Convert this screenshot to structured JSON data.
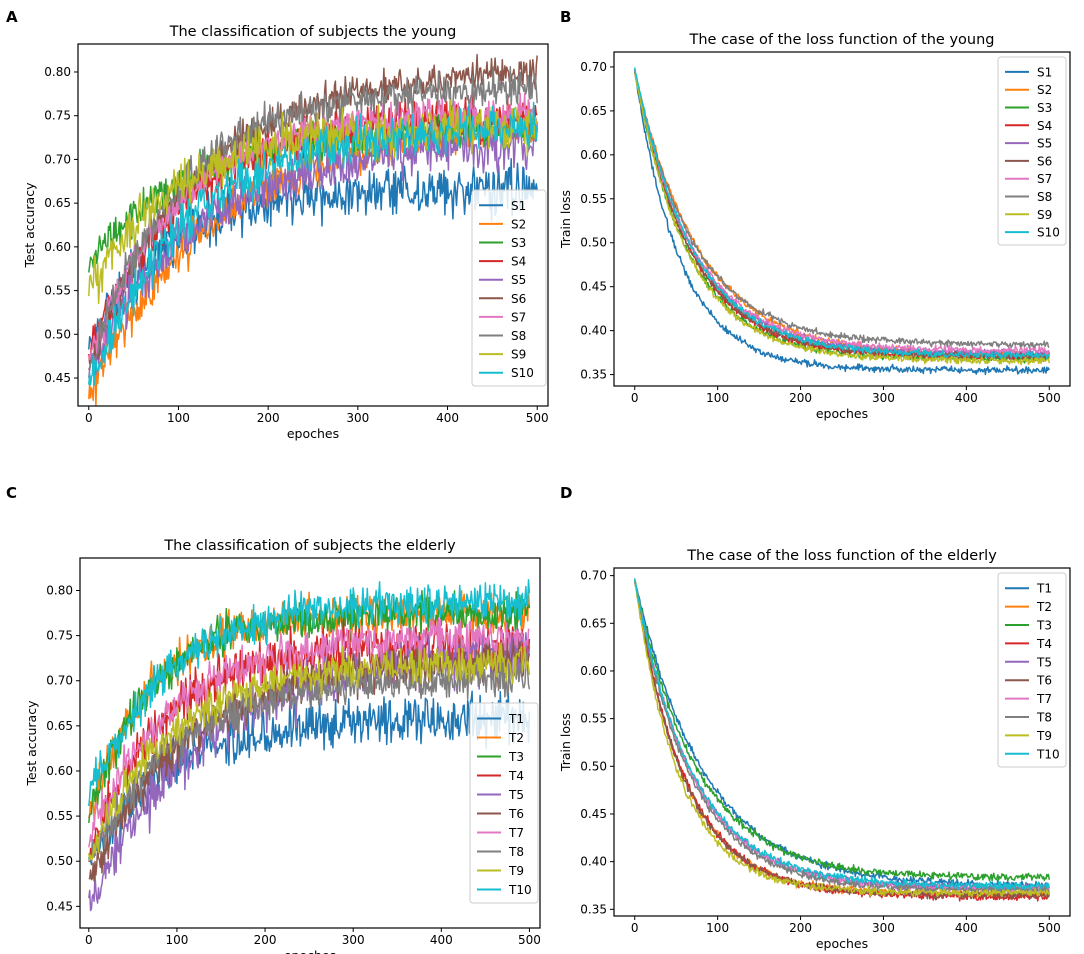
{
  "panel_letters": [
    "A",
    "B",
    "C",
    "D"
  ],
  "chart_data": [
    {
      "type": "line",
      "panel": "A",
      "title": "The classification of subjects the young",
      "xlabel": "epoches",
      "ylabel": "Test accuracy",
      "xlim": [
        -12,
        512
      ],
      "ylim": [
        0.418,
        0.832
      ],
      "xticks": [
        0,
        100,
        200,
        300,
        400,
        500
      ],
      "xtick_labels": [
        "0",
        "100",
        "200",
        "300",
        "400",
        "500"
      ],
      "yticks": [
        0.45,
        0.5,
        0.55,
        0.6,
        0.65,
        0.7,
        0.75,
        0.8
      ],
      "ytick_labels": [
        "0.45",
        "0.50",
        "0.55",
        "0.60",
        "0.65",
        "0.70",
        "0.75",
        "0.80"
      ],
      "legend_position": "lower-right",
      "series": [
        {
          "name": "S1",
          "color": "#1f77b4",
          "start": 0.48,
          "end": 0.665,
          "tau": 80,
          "noise": 0.022,
          "seed": 11
        },
        {
          "name": "S2",
          "color": "#ff7f0e",
          "start": 0.43,
          "end": 0.745,
          "tau": 140,
          "noise": 0.018,
          "seed": 12
        },
        {
          "name": "S3",
          "color": "#2ca02c",
          "start": 0.58,
          "end": 0.735,
          "tau": 110,
          "noise": 0.016,
          "seed": 13
        },
        {
          "name": "S4",
          "color": "#d62728",
          "start": 0.48,
          "end": 0.755,
          "tau": 110,
          "noise": 0.018,
          "seed": 14
        },
        {
          "name": "S5",
          "color": "#9467bd",
          "start": 0.46,
          "end": 0.72,
          "tau": 120,
          "noise": 0.02,
          "seed": 15
        },
        {
          "name": "S6",
          "color": "#8c564b",
          "start": 0.46,
          "end": 0.805,
          "tau": 120,
          "noise": 0.014,
          "seed": 16
        },
        {
          "name": "S7",
          "color": "#e377c2",
          "start": 0.47,
          "end": 0.755,
          "tau": 100,
          "noise": 0.016,
          "seed": 17
        },
        {
          "name": "S8",
          "color": "#7f7f7f",
          "start": 0.46,
          "end": 0.785,
          "tau": 100,
          "noise": 0.015,
          "seed": 18
        },
        {
          "name": "S9",
          "color": "#bcbd22",
          "start": 0.55,
          "end": 0.74,
          "tau": 100,
          "noise": 0.02,
          "seed": 19
        },
        {
          "name": "S10",
          "color": "#17becf",
          "start": 0.44,
          "end": 0.74,
          "tau": 110,
          "noise": 0.018,
          "seed": 20
        }
      ]
    },
    {
      "type": "line",
      "panel": "B",
      "title": "The case of the loss function of the young",
      "xlabel": "epoches",
      "ylabel": "Train loss",
      "xlim": [
        -25,
        525
      ],
      "ylim": [
        0.337,
        0.717
      ],
      "xticks": [
        0,
        100,
        200,
        300,
        400,
        500
      ],
      "xtick_labels": [
        "0",
        "100",
        "200",
        "300",
        "400",
        "500"
      ],
      "yticks": [
        0.35,
        0.4,
        0.45,
        0.5,
        0.55,
        0.6,
        0.65,
        0.7
      ],
      "ytick_labels": [
        "0.35",
        "0.40",
        "0.45",
        "0.50",
        "0.55",
        "0.60",
        "0.65",
        "0.70"
      ],
      "legend_position": "top-right",
      "series": [
        {
          "name": "S1",
          "color": "#1f77b4",
          "start": 0.695,
          "end": 0.355,
          "tau": 55,
          "noise": 0.003,
          "seed": 21
        },
        {
          "name": "S2",
          "color": "#ff7f0e",
          "start": 0.695,
          "end": 0.372,
          "tau": 78,
          "noise": 0.003,
          "seed": 22
        },
        {
          "name": "S3",
          "color": "#2ca02c",
          "start": 0.695,
          "end": 0.368,
          "tau": 65,
          "noise": 0.003,
          "seed": 23
        },
        {
          "name": "S4",
          "color": "#d62728",
          "start": 0.695,
          "end": 0.37,
          "tau": 68,
          "noise": 0.003,
          "seed": 24
        },
        {
          "name": "S5",
          "color": "#9467bd",
          "start": 0.695,
          "end": 0.374,
          "tau": 70,
          "noise": 0.003,
          "seed": 25
        },
        {
          "name": "S6",
          "color": "#8c564b",
          "start": 0.695,
          "end": 0.371,
          "tau": 68,
          "noise": 0.003,
          "seed": 26
        },
        {
          "name": "S7",
          "color": "#e377c2",
          "start": 0.695,
          "end": 0.377,
          "tau": 70,
          "noise": 0.003,
          "seed": 27
        },
        {
          "name": "S8",
          "color": "#7f7f7f",
          "start": 0.695,
          "end": 0.384,
          "tau": 72,
          "noise": 0.003,
          "seed": 28
        },
        {
          "name": "S9",
          "color": "#bcbd22",
          "start": 0.695,
          "end": 0.366,
          "tau": 65,
          "noise": 0.003,
          "seed": 29
        },
        {
          "name": "S10",
          "color": "#17becf",
          "start": 0.7,
          "end": 0.372,
          "tau": 70,
          "noise": 0.003,
          "seed": 30
        }
      ]
    },
    {
      "type": "line",
      "panel": "C",
      "title": "The classification of subjects the elderly",
      "xlabel": "epoches",
      "ylabel": "Test accuracy",
      "xlim": [
        -10,
        512
      ],
      "ylim": [
        0.426,
        0.836
      ],
      "xticks": [
        0,
        100,
        200,
        300,
        400,
        500
      ],
      "xtick_labels": [
        "0",
        "100",
        "200",
        "300",
        "400",
        "500"
      ],
      "yticks": [
        0.45,
        0.5,
        0.55,
        0.6,
        0.65,
        0.7,
        0.75,
        0.8
      ],
      "ytick_labels": [
        "0.45",
        "0.50",
        "0.55",
        "0.60",
        "0.65",
        "0.70",
        "0.75",
        "0.80"
      ],
      "legend_position": "lower-right",
      "series": [
        {
          "name": "T1",
          "color": "#1f77b4",
          "start": 0.5,
          "end": 0.66,
          "tau": 90,
          "noise": 0.02,
          "seed": 31
        },
        {
          "name": "T2",
          "color": "#ff7f0e",
          "start": 0.55,
          "end": 0.775,
          "tau": 70,
          "noise": 0.016,
          "seed": 32
        },
        {
          "name": "T3",
          "color": "#2ca02c",
          "start": 0.55,
          "end": 0.775,
          "tau": 70,
          "noise": 0.016,
          "seed": 33
        },
        {
          "name": "T4",
          "color": "#d62728",
          "start": 0.5,
          "end": 0.74,
          "tau": 80,
          "noise": 0.018,
          "seed": 34
        },
        {
          "name": "T5",
          "color": "#9467bd",
          "start": 0.45,
          "end": 0.735,
          "tau": 130,
          "noise": 0.022,
          "seed": 35
        },
        {
          "name": "T6",
          "color": "#8c564b",
          "start": 0.48,
          "end": 0.725,
          "tau": 110,
          "noise": 0.018,
          "seed": 36
        },
        {
          "name": "T7",
          "color": "#e377c2",
          "start": 0.52,
          "end": 0.75,
          "tau": 90,
          "noise": 0.016,
          "seed": 37
        },
        {
          "name": "T8",
          "color": "#7f7f7f",
          "start": 0.5,
          "end": 0.705,
          "tau": 100,
          "noise": 0.015,
          "seed": 38
        },
        {
          "name": "T9",
          "color": "#bcbd22",
          "start": 0.5,
          "end": 0.72,
          "tau": 90,
          "noise": 0.015,
          "seed": 39
        },
        {
          "name": "T10",
          "color": "#17becf",
          "start": 0.57,
          "end": 0.79,
          "tau": 90,
          "noise": 0.016,
          "seed": 40
        }
      ]
    },
    {
      "type": "line",
      "panel": "D",
      "title": "The case of the loss function of the elderly",
      "xlabel": "epoches",
      "ylabel": "Train loss",
      "xlim": [
        -25,
        525
      ],
      "ylim": [
        0.343,
        0.708
      ],
      "xticks": [
        0,
        100,
        200,
        300,
        400,
        500
      ],
      "xtick_labels": [
        "0",
        "100",
        "200",
        "300",
        "400",
        "500"
      ],
      "yticks": [
        0.35,
        0.4,
        0.45,
        0.5,
        0.55,
        0.6,
        0.65,
        0.7
      ],
      "ytick_labels": [
        "0.35",
        "0.40",
        "0.45",
        "0.50",
        "0.55",
        "0.60",
        "0.65",
        "0.70"
      ],
      "legend_position": "top-right",
      "series": [
        {
          "name": "T1",
          "color": "#1f77b4",
          "start": 0.695,
          "end": 0.374,
          "tau": 85,
          "noise": 0.003,
          "seed": 41
        },
        {
          "name": "T2",
          "color": "#ff7f0e",
          "start": 0.695,
          "end": 0.366,
          "tau": 60,
          "noise": 0.003,
          "seed": 42
        },
        {
          "name": "T3",
          "color": "#2ca02c",
          "start": 0.695,
          "end": 0.383,
          "tau": 75,
          "noise": 0.003,
          "seed": 43
        },
        {
          "name": "T4",
          "color": "#d62728",
          "start": 0.695,
          "end": 0.363,
          "tau": 62,
          "noise": 0.003,
          "seed": 44
        },
        {
          "name": "T5",
          "color": "#9467bd",
          "start": 0.695,
          "end": 0.372,
          "tau": 70,
          "noise": 0.003,
          "seed": 45
        },
        {
          "name": "T6",
          "color": "#8c564b",
          "start": 0.695,
          "end": 0.365,
          "tau": 60,
          "noise": 0.003,
          "seed": 46
        },
        {
          "name": "T7",
          "color": "#e377c2",
          "start": 0.695,
          "end": 0.371,
          "tau": 70,
          "noise": 0.003,
          "seed": 47
        },
        {
          "name": "T8",
          "color": "#7f7f7f",
          "start": 0.695,
          "end": 0.37,
          "tau": 68,
          "noise": 0.003,
          "seed": 48
        },
        {
          "name": "T9",
          "color": "#bcbd22",
          "start": 0.695,
          "end": 0.367,
          "tau": 55,
          "noise": 0.003,
          "seed": 49
        },
        {
          "name": "T10",
          "color": "#17becf",
          "start": 0.695,
          "end": 0.374,
          "tau": 70,
          "noise": 0.003,
          "seed": 50
        }
      ]
    }
  ]
}
